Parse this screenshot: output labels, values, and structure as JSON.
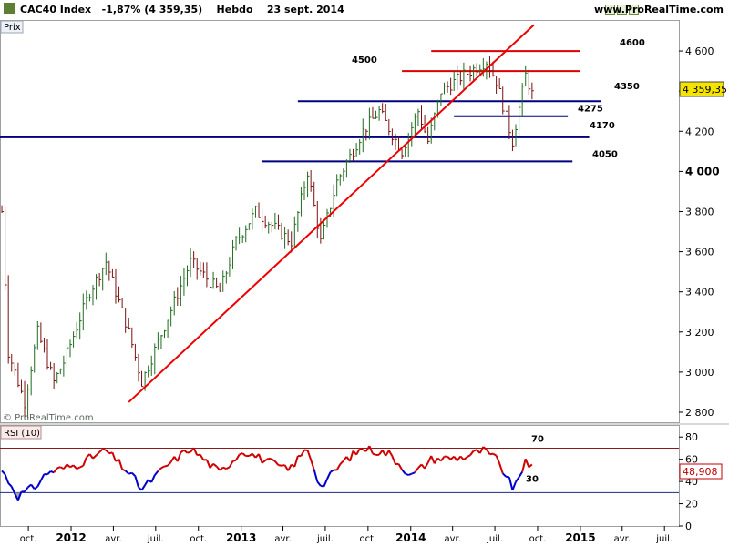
{
  "header": {
    "symbol": "CAC40 Index",
    "change": "-1,87% (4 359,35)",
    "period": "Hebdo",
    "date": "23 sept. 2014",
    "site": "www.ProRealTime.com"
  },
  "price_panel": {
    "label": "Prix",
    "watermark": "© ProRealTime.com",
    "last_value": "4 359,35",
    "y_ticks": [
      "2 800",
      "3 000",
      "3 200",
      "3 400",
      "3 600",
      "3 800",
      "4 000",
      "4 200",
      "4 400",
      "4 600"
    ],
    "level_labels": [
      "4600",
      "4500",
      "4350",
      "4275",
      "4170",
      "4050"
    ]
  },
  "rsi_panel": {
    "label": "RSI (10)",
    "last_value": "48,908",
    "y_ticks": [
      "0",
      "20",
      "40",
      "60",
      "80"
    ],
    "levels": [
      "70",
      "30"
    ]
  },
  "x_axis": {
    "ticks": [
      "oct.",
      "2012",
      "avr.",
      "juil.",
      "oct.",
      "2013",
      "avr.",
      "juil.",
      "oct.",
      "2014",
      "avr.",
      "juil.",
      "oct.",
      "2015",
      "avr.",
      "juil."
    ]
  },
  "chart_data": [
    {
      "type": "ohlc",
      "title": "CAC40 Index",
      "series_name": "CAC40 Index",
      "timeframe": "Hebdo",
      "x_range": [
        "2011-08",
        "2015-08"
      ],
      "ylim": [
        2750,
        4750
      ],
      "grid": false,
      "key_points": [
        {
          "date": "2011-08-05",
          "close": 3800
        },
        {
          "date": "2011-08-19",
          "close": 3100
        },
        {
          "date": "2011-09-23",
          "close": 2850
        },
        {
          "date": "2011-10-21",
          "close": 3200
        },
        {
          "date": "2011-11-25",
          "close": 2950
        },
        {
          "date": "2011-12-16",
          "close": 3050
        },
        {
          "date": "2012-02-10",
          "close": 3400
        },
        {
          "date": "2012-03-16",
          "close": 3550
        },
        {
          "date": "2012-05-04",
          "close": 3200
        },
        {
          "date": "2012-06-01",
          "close": 2950
        },
        {
          "date": "2012-07-06",
          "close": 3150
        },
        {
          "date": "2012-09-14",
          "close": 3550
        },
        {
          "date": "2012-11-16",
          "close": 3400
        },
        {
          "date": "2012-12-21",
          "close": 3650
        },
        {
          "date": "2013-02-01",
          "close": 3800
        },
        {
          "date": "2013-04-19",
          "close": 3650
        },
        {
          "date": "2013-05-24",
          "close": 4000
        },
        {
          "date": "2013-06-21",
          "close": 3650
        },
        {
          "date": "2013-07-26",
          "close": 3950
        },
        {
          "date": "2013-09-20",
          "close": 4200
        },
        {
          "date": "2013-10-25",
          "close": 4300
        },
        {
          "date": "2013-12-13",
          "close": 4100
        },
        {
          "date": "2014-01-17",
          "close": 4300
        },
        {
          "date": "2014-02-07",
          "close": 4150
        },
        {
          "date": "2014-03-07",
          "close": 4400
        },
        {
          "date": "2014-04-25",
          "close": 4480
        },
        {
          "date": "2014-06-13",
          "close": 4550
        },
        {
          "date": "2014-07-04",
          "close": 4450
        },
        {
          "date": "2014-08-08",
          "close": 4150
        },
        {
          "date": "2014-09-05",
          "close": 4480
        },
        {
          "date": "2014-09-23",
          "close": 4359.35
        }
      ],
      "horizontal_levels": [
        {
          "value": 4600,
          "color": "#dd0000"
        },
        {
          "value": 4500,
          "color": "#dd0000"
        },
        {
          "value": 4350,
          "color": "#000080"
        },
        {
          "value": 4275,
          "color": "#000080"
        },
        {
          "value": 4170,
          "color": "#000080"
        },
        {
          "value": 4050,
          "color": "#000080"
        }
      ],
      "trendline": {
        "color": "#ee0000",
        "from": {
          "date": "2012-05-04",
          "value": 2850
        },
        "to": {
          "date": "2014-09-23",
          "value": 4730
        }
      },
      "last_value": 4359.35
    },
    {
      "type": "line",
      "title": "RSI (10)",
      "ylim": [
        0,
        90
      ],
      "levels": [
        70,
        30
      ],
      "colors": {
        "above_50": "#d00000",
        "below_50": "#0000cc"
      },
      "key_points": [
        {
          "date": "2011-08-05",
          "value": 50
        },
        {
          "date": "2011-09-09",
          "value": 27
        },
        {
          "date": "2011-10-14",
          "value": 35
        },
        {
          "date": "2011-11-11",
          "value": 48
        },
        {
          "date": "2012-01-13",
          "value": 55
        },
        {
          "date": "2012-03-16",
          "value": 68
        },
        {
          "date": "2012-05-11",
          "value": 45
        },
        {
          "date": "2012-06-01",
          "value": 33
        },
        {
          "date": "2012-07-27",
          "value": 55
        },
        {
          "date": "2012-09-14",
          "value": 70
        },
        {
          "date": "2012-11-16",
          "value": 48
        },
        {
          "date": "2013-01-04",
          "value": 68
        },
        {
          "date": "2013-04-12",
          "value": 50
        },
        {
          "date": "2013-05-24",
          "value": 70
        },
        {
          "date": "2013-06-21",
          "value": 35
        },
        {
          "date": "2013-08-09",
          "value": 58
        },
        {
          "date": "2013-09-20",
          "value": 70
        },
        {
          "date": "2013-11-15",
          "value": 65
        },
        {
          "date": "2014-01-03",
          "value": 45
        },
        {
          "date": "2014-02-14",
          "value": 60
        },
        {
          "date": "2014-04-25",
          "value": 62
        },
        {
          "date": "2014-06-06",
          "value": 68
        },
        {
          "date": "2014-07-04",
          "value": 60
        },
        {
          "date": "2014-08-08",
          "value": 35
        },
        {
          "date": "2014-08-22",
          "value": 40
        },
        {
          "date": "2014-09-05",
          "value": 61
        },
        {
          "date": "2014-09-23",
          "value": 48.9
        }
      ],
      "last_value": 48.908
    }
  ]
}
